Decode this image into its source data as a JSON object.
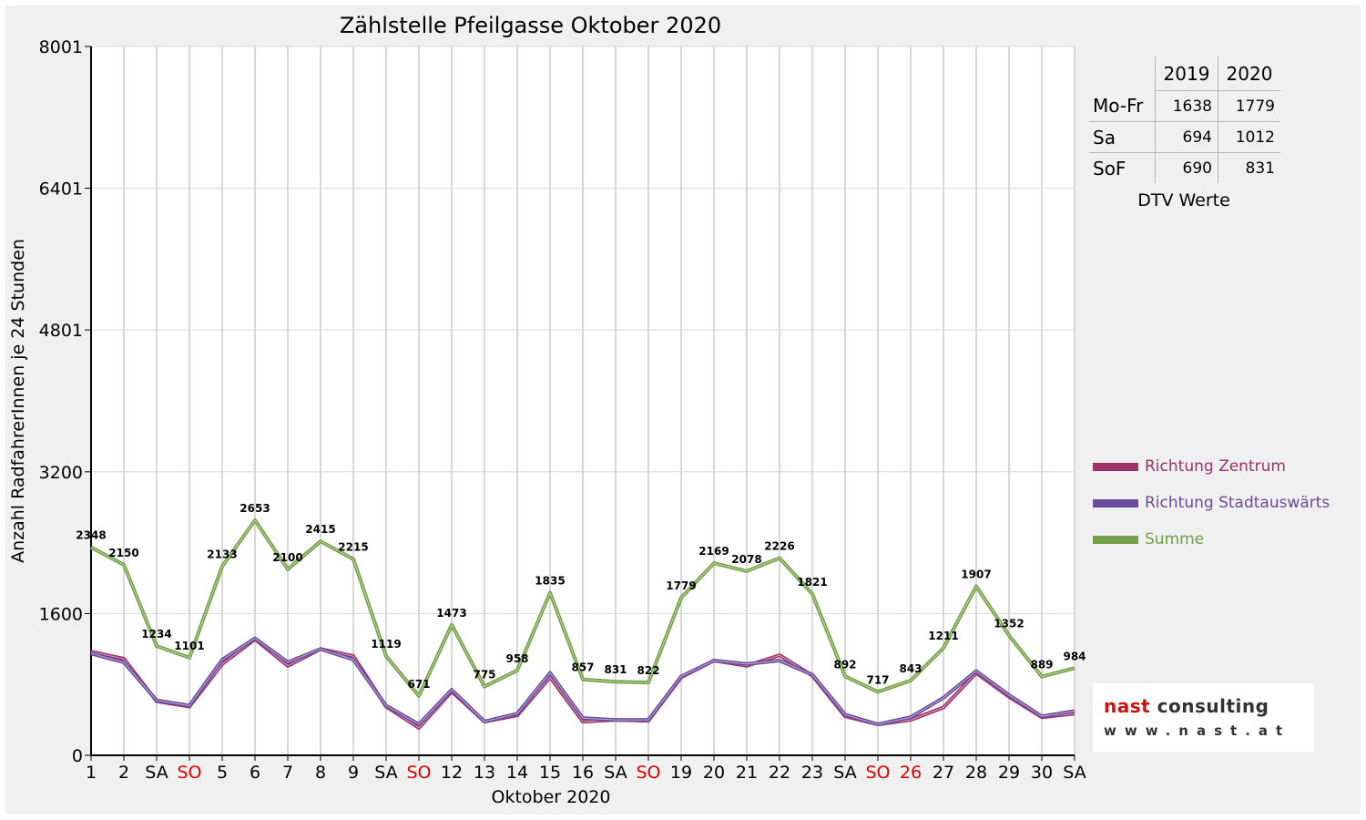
{
  "chart_data": {
    "type": "line",
    "title": "Zählstelle Pfeilgasse Oktober 2020",
    "xlabel": "Oktober 2020",
    "ylabel": "Anzahl RadfahrerInnen je 24 Stunden",
    "ylim": [
      0,
      8001
    ],
    "yticks": [
      "0",
      "1600",
      "3200",
      "4801",
      "6401",
      "8001"
    ],
    "categories": [
      "1",
      "2",
      "SA",
      "SO",
      "5",
      "6",
      "7",
      "8",
      "9",
      "SA",
      "SO",
      "12",
      "13",
      "14",
      "15",
      "16",
      "SA",
      "SO",
      "19",
      "20",
      "21",
      "22",
      "23",
      "SA",
      "SO",
      "26",
      "27",
      "28",
      "29",
      "30",
      "SA"
    ],
    "category_colors": [
      "#000000",
      "#000000",
      "#000000",
      "#e00000",
      "#000000",
      "#000000",
      "#000000",
      "#000000",
      "#000000",
      "#000000",
      "#e00000",
      "#000000",
      "#000000",
      "#000000",
      "#000000",
      "#000000",
      "#000000",
      "#e00000",
      "#000000",
      "#000000",
      "#000000",
      "#000000",
      "#000000",
      "#000000",
      "#e00000",
      "#e00000",
      "#000000",
      "#000000",
      "#000000",
      "#000000",
      "#000000"
    ],
    "grid": true,
    "legend_position": "right",
    "series": [
      {
        "name": "Richtung Zentrum",
        "color": "#a0306a",
        "values": [
          1170,
          1090,
          610,
          550,
          1030,
          1310,
          1010,
          1200,
          1120,
          550,
          310,
          720,
          380,
          450,
          880,
          380,
          400,
          390,
          880,
          1070,
          1010,
          1130,
          900,
          440,
          350,
          400,
          540,
          930,
          660,
          430,
          470
        ]
      },
      {
        "name": "Richtung Stadtauswärts",
        "color": "#6a4a9a",
        "values": [
          1150,
          1050,
          620,
          560,
          1080,
          1320,
          1050,
          1200,
          1080,
          560,
          350,
          740,
          380,
          470,
          930,
          420,
          400,
          400,
          890,
          1070,
          1030,
          1070,
          910,
          460,
          350,
          430,
          650,
          950,
          680,
          440,
          500
        ]
      },
      {
        "name": "Summe",
        "color": "#72a044",
        "values": [
          2348,
          2150,
          1234,
          1101,
          2133,
          2653,
          2100,
          2415,
          2215,
          1119,
          671,
          1473,
          775,
          958,
          1835,
          857,
          831,
          822,
          1779,
          2169,
          2078,
          2226,
          1821,
          892,
          717,
          843,
          1211,
          1907,
          1352,
          889,
          984
        ],
        "data_labels": [
          "2348",
          "2150",
          "1234",
          "1101",
          "2133",
          "2653",
          "2100",
          "2415",
          "2215",
          "1119",
          "671",
          "1473",
          "775",
          "958",
          "1835",
          "857",
          "831",
          "822",
          "1779",
          "2169",
          "2078",
          "2226",
          "1821",
          "892",
          "717",
          "843",
          "1211",
          "1907",
          "1352",
          "889",
          "984"
        ]
      }
    ]
  },
  "dtv_table": {
    "years": [
      "2019",
      "2020"
    ],
    "rows": [
      {
        "label": "Mo-Fr",
        "v2019": "1638",
        "v2020": "1779"
      },
      {
        "label": "Sa",
        "v2019": "694",
        "v2020": "1012"
      },
      {
        "label": "SoF",
        "v2019": "690",
        "v2020": "831"
      }
    ],
    "caption": "DTV Werte"
  },
  "logo": {
    "name": "nast consulting",
    "name_prefix": "nast",
    "name_suffix": " consulting",
    "url": "www.nast.at",
    "prefix_color": "#cc1111"
  }
}
